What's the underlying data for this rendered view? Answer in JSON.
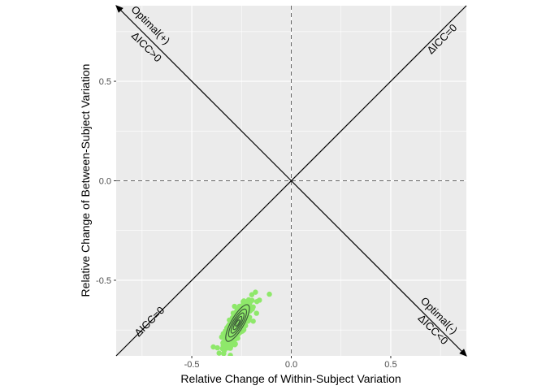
{
  "chart_data": {
    "type": "scatter",
    "xlabel": "Relative Change of Within-Subject Variation",
    "ylabel": "Relative Change of Between-Subject Variation",
    "xlim": [
      -0.88,
      0.88
    ],
    "ylim": [
      -0.88,
      0.88
    ],
    "x_ticks": [
      {
        "value": -0.5,
        "label": "-0.5"
      },
      {
        "value": 0.0,
        "label": "0.0"
      },
      {
        "value": 0.5,
        "label": "0.5"
      }
    ],
    "y_ticks": [
      {
        "value": 0.5,
        "label": "0.5"
      },
      {
        "value": 0.0,
        "label": "0.0"
      },
      {
        "value": -0.5,
        "label": "-0.5"
      }
    ],
    "grid": true,
    "reference_lines": [
      {
        "type": "vertical",
        "value": 0,
        "style": "dashed"
      },
      {
        "type": "horizontal",
        "value": 0,
        "style": "dashed"
      },
      {
        "type": "diagonal",
        "slope": 1,
        "label": "ΔICC=0"
      },
      {
        "type": "diagonal",
        "slope": -1,
        "arrows": true
      }
    ],
    "annotations": [
      {
        "text": "Optimal(+)",
        "x": -0.72,
        "y": 0.77
      },
      {
        "text": "ΔICC>0",
        "x": -0.74,
        "y": 0.66
      },
      {
        "text": "ΔICC=0",
        "x": 0.77,
        "y": 0.7
      },
      {
        "text": "ΔICC=0",
        "x": -0.7,
        "y": -0.72
      },
      {
        "text": "Optimal(-)",
        "x": 0.73,
        "y": -0.69
      },
      {
        "text": "ΔICC<0",
        "x": 0.7,
        "y": -0.76
      }
    ],
    "series": [
      {
        "type": "scatter",
        "color": "#8ee86a",
        "cluster": {
          "center": [
            -0.27,
            -0.72
          ],
          "spread": [
            0.035,
            0.055
          ],
          "correlation": 0.8,
          "n": 420
        },
        "outliers": [
          {
            "x": -0.11,
            "y": -0.57
          },
          {
            "x": -0.18,
            "y": -0.56
          },
          {
            "x": -0.16,
            "y": -0.6
          }
        ]
      },
      {
        "type": "density_contour",
        "color": "#3d5c3a",
        "center": [
          -0.27,
          -0.715
        ],
        "rotation_deg": 60,
        "levels": [
          {
            "a": 0.105,
            "b": 0.032
          },
          {
            "a": 0.08,
            "b": 0.024
          },
          {
            "a": 0.058,
            "b": 0.017
          },
          {
            "a": 0.038,
            "b": 0.011
          },
          {
            "a": 0.018,
            "b": 0.006
          }
        ]
      }
    ]
  }
}
